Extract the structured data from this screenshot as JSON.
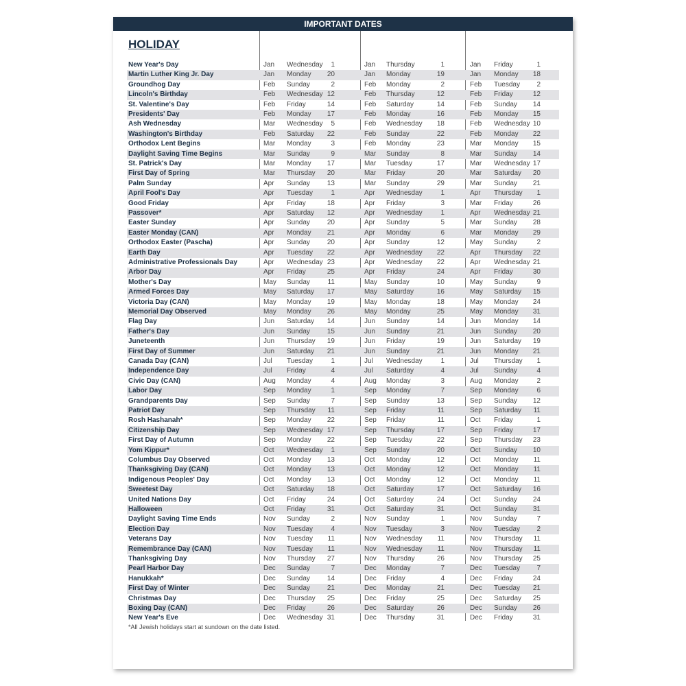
{
  "header": {
    "title": "IMPORTANT DATES"
  },
  "section_title": "HOLIDAY",
  "footnote": "*All Jewish holidays start at sundown on the date listed.",
  "colors": {
    "header_bg": "#1e3247",
    "row_shade": "#e2e2e5",
    "name_text": "#1e3247"
  },
  "rows": [
    {
      "name": "New Year's Day",
      "dates": [
        [
          "Jan",
          "Wednesday",
          "1"
        ],
        [
          "Jan",
          "Thursday",
          "1"
        ],
        [
          "Jan",
          "Friday",
          "1"
        ]
      ]
    },
    {
      "name": "Martin Luther King Jr. Day",
      "dates": [
        [
          "Jan",
          "Monday",
          "20"
        ],
        [
          "Jan",
          "Monday",
          "19"
        ],
        [
          "Jan",
          "Monday",
          "18"
        ]
      ]
    },
    {
      "name": "Groundhog Day",
      "dates": [
        [
          "Feb",
          "Sunday",
          "2"
        ],
        [
          "Feb",
          "Monday",
          "2"
        ],
        [
          "Feb",
          "Tuesday",
          "2"
        ]
      ]
    },
    {
      "name": "Lincoln's Birthday",
      "dates": [
        [
          "Feb",
          "Wednesday",
          "12"
        ],
        [
          "Feb",
          "Thursday",
          "12"
        ],
        [
          "Feb",
          "Friday",
          "12"
        ]
      ]
    },
    {
      "name": "St. Valentine's Day",
      "dates": [
        [
          "Feb",
          "Friday",
          "14"
        ],
        [
          "Feb",
          "Saturday",
          "14"
        ],
        [
          "Feb",
          "Sunday",
          "14"
        ]
      ]
    },
    {
      "name": "Presidents' Day",
      "dates": [
        [
          "Feb",
          "Monday",
          "17"
        ],
        [
          "Feb",
          "Monday",
          "16"
        ],
        [
          "Feb",
          "Monday",
          "15"
        ]
      ]
    },
    {
      "name": "Ash Wednesday",
      "dates": [
        [
          "Mar",
          "Wednesday",
          "5"
        ],
        [
          "Feb",
          "Wednesday",
          "18"
        ],
        [
          "Feb",
          "Wednesday",
          "10"
        ]
      ]
    },
    {
      "name": "Washington's Birthday",
      "dates": [
        [
          "Feb",
          "Saturday",
          "22"
        ],
        [
          "Feb",
          "Sunday",
          "22"
        ],
        [
          "Feb",
          "Monday",
          "22"
        ]
      ]
    },
    {
      "name": "Orthodox Lent Begins",
      "dates": [
        [
          "Mar",
          "Monday",
          "3"
        ],
        [
          "Feb",
          "Monday",
          "23"
        ],
        [
          "Mar",
          "Monday",
          "15"
        ]
      ]
    },
    {
      "name": "Daylight Saving Time Begins",
      "dates": [
        [
          "Mar",
          "Sunday",
          "9"
        ],
        [
          "Mar",
          "Sunday",
          "8"
        ],
        [
          "Mar",
          "Sunday",
          "14"
        ]
      ]
    },
    {
      "name": "St. Patrick's Day",
      "dates": [
        [
          "Mar",
          "Monday",
          "17"
        ],
        [
          "Mar",
          "Tuesday",
          "17"
        ],
        [
          "Mar",
          "Wednesday",
          "17"
        ]
      ]
    },
    {
      "name": "First Day of Spring",
      "dates": [
        [
          "Mar",
          "Thursday",
          "20"
        ],
        [
          "Mar",
          "Friday",
          "20"
        ],
        [
          "Mar",
          "Saturday",
          "20"
        ]
      ]
    },
    {
      "name": "Palm Sunday",
      "dates": [
        [
          "Apr",
          "Sunday",
          "13"
        ],
        [
          "Mar",
          "Sunday",
          "29"
        ],
        [
          "Mar",
          "Sunday",
          "21"
        ]
      ]
    },
    {
      "name": "April Fool's Day",
      "dates": [
        [
          "Apr",
          "Tuesday",
          "1"
        ],
        [
          "Apr",
          "Wednesday",
          "1"
        ],
        [
          "Apr",
          "Thursday",
          "1"
        ]
      ]
    },
    {
      "name": "Good Friday",
      "dates": [
        [
          "Apr",
          "Friday",
          "18"
        ],
        [
          "Apr",
          "Friday",
          "3"
        ],
        [
          "Mar",
          "Friday",
          "26"
        ]
      ]
    },
    {
      "name": "Passover*",
      "dates": [
        [
          "Apr",
          "Saturday",
          "12"
        ],
        [
          "Apr",
          "Wednesday",
          "1"
        ],
        [
          "Apr",
          "Wednesday",
          "21"
        ]
      ]
    },
    {
      "name": "Easter Sunday",
      "dates": [
        [
          "Apr",
          "Sunday",
          "20"
        ],
        [
          "Apr",
          "Sunday",
          "5"
        ],
        [
          "Mar",
          "Sunday",
          "28"
        ]
      ]
    },
    {
      "name": "Easter Monday (CAN)",
      "dates": [
        [
          "Apr",
          "Monday",
          "21"
        ],
        [
          "Apr",
          "Monday",
          "6"
        ],
        [
          "Mar",
          "Monday",
          "29"
        ]
      ]
    },
    {
      "name": "Orthodox Easter (Pascha)",
      "dates": [
        [
          "Apr",
          "Sunday",
          "20"
        ],
        [
          "Apr",
          "Sunday",
          "12"
        ],
        [
          "May",
          "Sunday",
          "2"
        ]
      ]
    },
    {
      "name": "Earth Day",
      "dates": [
        [
          "Apr",
          "Tuesday",
          "22"
        ],
        [
          "Apr",
          "Wednesday",
          "22"
        ],
        [
          "Apr",
          "Thursday",
          "22"
        ]
      ]
    },
    {
      "name": "Administrative Professionals Day",
      "dates": [
        [
          "Apr",
          "Wednesday",
          "23"
        ],
        [
          "Apr",
          "Wednesday",
          "22"
        ],
        [
          "Apr",
          "Wednesday",
          "21"
        ]
      ]
    },
    {
      "name": "Arbor Day",
      "dates": [
        [
          "Apr",
          "Friday",
          "25"
        ],
        [
          "Apr",
          "Friday",
          "24"
        ],
        [
          "Apr",
          "Friday",
          "30"
        ]
      ]
    },
    {
      "name": "Mother's Day",
      "dates": [
        [
          "May",
          "Sunday",
          "11"
        ],
        [
          "May",
          "Sunday",
          "10"
        ],
        [
          "May",
          "Sunday",
          "9"
        ]
      ]
    },
    {
      "name": "Armed Forces Day",
      "dates": [
        [
          "May",
          "Saturday",
          "17"
        ],
        [
          "May",
          "Saturday",
          "16"
        ],
        [
          "May",
          "Saturday",
          "15"
        ]
      ]
    },
    {
      "name": "Victoria Day (CAN)",
      "dates": [
        [
          "May",
          "Monday",
          "19"
        ],
        [
          "May",
          "Monday",
          "18"
        ],
        [
          "May",
          "Monday",
          "24"
        ]
      ]
    },
    {
      "name": "Memorial Day Observed",
      "dates": [
        [
          "May",
          "Monday",
          "26"
        ],
        [
          "May",
          "Monday",
          "25"
        ],
        [
          "May",
          "Monday",
          "31"
        ]
      ]
    },
    {
      "name": "Flag Day",
      "dates": [
        [
          "Jun",
          "Saturday",
          "14"
        ],
        [
          "Jun",
          "Sunday",
          "14"
        ],
        [
          "Jun",
          "Monday",
          "14"
        ]
      ]
    },
    {
      "name": "Father's Day",
      "dates": [
        [
          "Jun",
          "Sunday",
          "15"
        ],
        [
          "Jun",
          "Sunday",
          "21"
        ],
        [
          "Jun",
          "Sunday",
          "20"
        ]
      ]
    },
    {
      "name": "Juneteenth",
      "dates": [
        [
          "Jun",
          "Thursday",
          "19"
        ],
        [
          "Jun",
          "Friday",
          "19"
        ],
        [
          "Jun",
          "Saturday",
          "19"
        ]
      ]
    },
    {
      "name": "First Day of Summer",
      "dates": [
        [
          "Jun",
          "Saturday",
          "21"
        ],
        [
          "Jun",
          "Sunday",
          "21"
        ],
        [
          "Jun",
          "Monday",
          "21"
        ]
      ]
    },
    {
      "name": "Canada Day (CAN)",
      "dates": [
        [
          "Jul",
          "Tuesday",
          "1"
        ],
        [
          "Jul",
          "Wednesday",
          "1"
        ],
        [
          "Jul",
          "Thursday",
          "1"
        ]
      ]
    },
    {
      "name": "Independence Day",
      "dates": [
        [
          "Jul",
          "Friday",
          "4"
        ],
        [
          "Jul",
          "Saturday",
          "4"
        ],
        [
          "Jul",
          "Sunday",
          "4"
        ]
      ]
    },
    {
      "name": "Civic Day (CAN)",
      "dates": [
        [
          "Aug",
          "Monday",
          "4"
        ],
        [
          "Aug",
          "Monday",
          "3"
        ],
        [
          "Aug",
          "Monday",
          "2"
        ]
      ]
    },
    {
      "name": "Labor Day",
      "dates": [
        [
          "Sep",
          "Monday",
          "1"
        ],
        [
          "Sep",
          "Monday",
          "7"
        ],
        [
          "Sep",
          "Monday",
          "6"
        ]
      ]
    },
    {
      "name": "Grandparents Day",
      "dates": [
        [
          "Sep",
          "Sunday",
          "7"
        ],
        [
          "Sep",
          "Sunday",
          "13"
        ],
        [
          "Sep",
          "Sunday",
          "12"
        ]
      ]
    },
    {
      "name": "Patriot Day",
      "dates": [
        [
          "Sep",
          "Thursday",
          "11"
        ],
        [
          "Sep",
          "Friday",
          "11"
        ],
        [
          "Sep",
          "Saturday",
          "11"
        ]
      ]
    },
    {
      "name": "Rosh Hashanah*",
      "dates": [
        [
          "Sep",
          "Monday",
          "22"
        ],
        [
          "Sep",
          "Friday",
          "11"
        ],
        [
          "Oct",
          "Friday",
          "1"
        ]
      ]
    },
    {
      "name": "Citizenship Day",
      "dates": [
        [
          "Sep",
          "Wednesday",
          "17"
        ],
        [
          "Sep",
          "Thursday",
          "17"
        ],
        [
          "Sep",
          "Friday",
          "17"
        ]
      ]
    },
    {
      "name": "First Day of Autumn",
      "dates": [
        [
          "Sep",
          "Monday",
          "22"
        ],
        [
          "Sep",
          "Tuesday",
          "22"
        ],
        [
          "Sep",
          "Thursday",
          "23"
        ]
      ]
    },
    {
      "name": "Yom Kippur*",
      "dates": [
        [
          "Oct",
          "Wednesday",
          "1"
        ],
        [
          "Sep",
          "Sunday",
          "20"
        ],
        [
          "Oct",
          "Sunday",
          "10"
        ]
      ]
    },
    {
      "name": "Columbus Day Observed",
      "dates": [
        [
          "Oct",
          "Monday",
          "13"
        ],
        [
          "Oct",
          "Monday",
          "12"
        ],
        [
          "Oct",
          "Monday",
          "11"
        ]
      ]
    },
    {
      "name": "Thanksgiving Day (CAN)",
      "dates": [
        [
          "Oct",
          "Monday",
          "13"
        ],
        [
          "Oct",
          "Monday",
          "12"
        ],
        [
          "Oct",
          "Monday",
          "11"
        ]
      ]
    },
    {
      "name": "Indigenous Peoples' Day",
      "dates": [
        [
          "Oct",
          "Monday",
          "13"
        ],
        [
          "Oct",
          "Monday",
          "12"
        ],
        [
          "Oct",
          "Monday",
          "11"
        ]
      ]
    },
    {
      "name": "Sweetest Day",
      "dates": [
        [
          "Oct",
          "Saturday",
          "18"
        ],
        [
          "Oct",
          "Saturday",
          "17"
        ],
        [
          "Oct",
          "Saturday",
          "16"
        ]
      ]
    },
    {
      "name": "United Nations Day",
      "dates": [
        [
          "Oct",
          "Friday",
          "24"
        ],
        [
          "Oct",
          "Saturday",
          "24"
        ],
        [
          "Oct",
          "Sunday",
          "24"
        ]
      ]
    },
    {
      "name": "Halloween",
      "dates": [
        [
          "Oct",
          "Friday",
          "31"
        ],
        [
          "Oct",
          "Saturday",
          "31"
        ],
        [
          "Oct",
          "Sunday",
          "31"
        ]
      ]
    },
    {
      "name": "Daylight Saving Time Ends",
      "dates": [
        [
          "Nov",
          "Sunday",
          "2"
        ],
        [
          "Nov",
          "Sunday",
          "1"
        ],
        [
          "Nov",
          "Sunday",
          "7"
        ]
      ]
    },
    {
      "name": "Election Day",
      "dates": [
        [
          "Nov",
          "Tuesday",
          "4"
        ],
        [
          "Nov",
          "Tuesday",
          "3"
        ],
        [
          "Nov",
          "Tuesday",
          "2"
        ]
      ]
    },
    {
      "name": "Veterans Day",
      "dates": [
        [
          "Nov",
          "Tuesday",
          "11"
        ],
        [
          "Nov",
          "Wednesday",
          "11"
        ],
        [
          "Nov",
          "Thursday",
          "11"
        ]
      ]
    },
    {
      "name": "Remembrance Day (CAN)",
      "dates": [
        [
          "Nov",
          "Tuesday",
          "11"
        ],
        [
          "Nov",
          "Wednesday",
          "11"
        ],
        [
          "Nov",
          "Thursday",
          "11"
        ]
      ]
    },
    {
      "name": "Thanksgiving Day",
      "dates": [
        [
          "Nov",
          "Thursday",
          "27"
        ],
        [
          "Nov",
          "Thursday",
          "26"
        ],
        [
          "Nov",
          "Thursday",
          "25"
        ]
      ]
    },
    {
      "name": "Pearl Harbor Day",
      "dates": [
        [
          "Dec",
          "Sunday",
          "7"
        ],
        [
          "Dec",
          "Monday",
          "7"
        ],
        [
          "Dec",
          "Tuesday",
          "7"
        ]
      ]
    },
    {
      "name": "Hanukkah*",
      "dates": [
        [
          "Dec",
          "Sunday",
          "14"
        ],
        [
          "Dec",
          "Friday",
          "4"
        ],
        [
          "Dec",
          "Friday",
          "24"
        ]
      ]
    },
    {
      "name": "First Day of Winter",
      "dates": [
        [
          "Dec",
          "Sunday",
          "21"
        ],
        [
          "Dec",
          "Monday",
          "21"
        ],
        [
          "Dec",
          "Tuesday",
          "21"
        ]
      ]
    },
    {
      "name": "Christmas Day",
      "dates": [
        [
          "Dec",
          "Thursday",
          "25"
        ],
        [
          "Dec",
          "Friday",
          "25"
        ],
        [
          "Dec",
          "Saturday",
          "25"
        ]
      ]
    },
    {
      "name": "Boxing Day (CAN)",
      "dates": [
        [
          "Dec",
          "Friday",
          "26"
        ],
        [
          "Dec",
          "Saturday",
          "26"
        ],
        [
          "Dec",
          "Sunday",
          "26"
        ]
      ]
    },
    {
      "name": "New Year's Eve",
      "dates": [
        [
          "Dec",
          "Wednesday",
          "31"
        ],
        [
          "Dec",
          "Thursday",
          "31"
        ],
        [
          "Dec",
          "Friday",
          "31"
        ]
      ]
    }
  ]
}
